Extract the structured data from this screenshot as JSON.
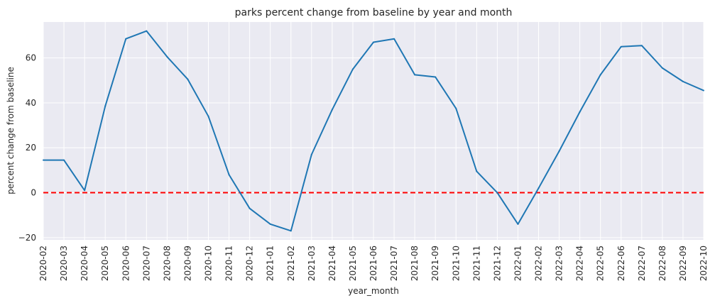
{
  "chart_data": {
    "type": "line",
    "title": "parks percent change from baseline by year and month",
    "xlabel": "year_month",
    "ylabel": "percent change from baseline",
    "ylim": [
      -21,
      76
    ],
    "yticks": [
      -20,
      0,
      20,
      40,
      60
    ],
    "grid": true,
    "background": "#eaeaf2",
    "categories": [
      "2020-02",
      "2020-03",
      "2020-04",
      "2020-05",
      "2020-06",
      "2020-07",
      "2020-08",
      "2020-09",
      "2020-10",
      "2020-11",
      "2020-12",
      "2021-01",
      "2021-02",
      "2021-03",
      "2021-04",
      "2021-05",
      "2021-06",
      "2021-07",
      "2021-08",
      "2021-09",
      "2021-10",
      "2021-11",
      "2021-12",
      "2022-01",
      "2022-02",
      "2022-03",
      "2022-04",
      "2022-05",
      "2022-06",
      "2022-07",
      "2022-08",
      "2022-09",
      "2022-10"
    ],
    "series": [
      {
        "color": "#1f77b4",
        "values": [
          14.5,
          14.5,
          1,
          38.5,
          68.5,
          72,
          60.5,
          50.5,
          34,
          8,
          -7,
          -14,
          -17,
          17,
          37,
          55,
          67,
          68.5,
          52.5,
          51.5,
          37.5,
          9.5,
          0,
          -14,
          2,
          18.5,
          36,
          52.5,
          65,
          65.5,
          55.5,
          49.5,
          45.5
        ]
      }
    ],
    "reference_line": {
      "y": 0,
      "style": "dashed",
      "color": "#ff0000"
    }
  }
}
